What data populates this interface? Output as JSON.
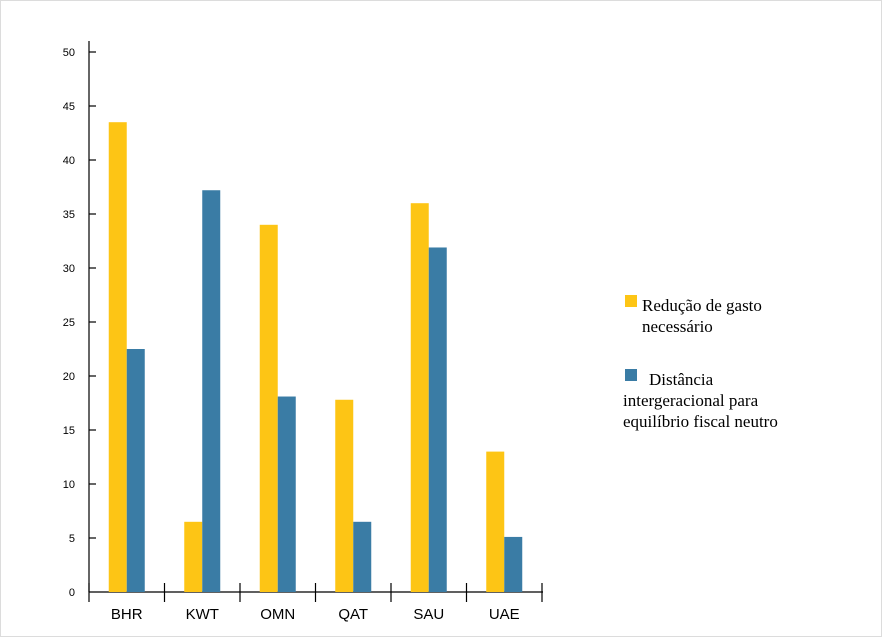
{
  "chart_data": {
    "type": "bar",
    "categories": [
      "BHR",
      "KWT",
      "OMN",
      "QAT",
      "SAU",
      "UAE"
    ],
    "series": [
      {
        "name": "Redução de gasto necessário",
        "legend_lines": [
          "Redução de gasto",
          "necessário"
        ],
        "color": "#FDC515",
        "values": [
          43.5,
          6.5,
          34,
          17.8,
          36,
          13
        ]
      },
      {
        "name": "Distância intergeracional para equilíbrio fiscal neutro",
        "legend_lines": [
          "Distância",
          "intergeracional para",
          "equilíbrio fiscal neutro"
        ],
        "color": "#3A7CA5",
        "values": [
          22.5,
          37.2,
          18.1,
          6.5,
          31.9,
          5.1
        ]
      }
    ],
    "yticks": [
      "0",
      "5",
      "10",
      "15",
      "20",
      "25",
      "30",
      "35",
      "40",
      "45",
      "50"
    ],
    "ylim": [
      0,
      50
    ],
    "grid": false,
    "legend_position": "right",
    "title": "",
    "xlabel": "",
    "ylabel": ""
  }
}
